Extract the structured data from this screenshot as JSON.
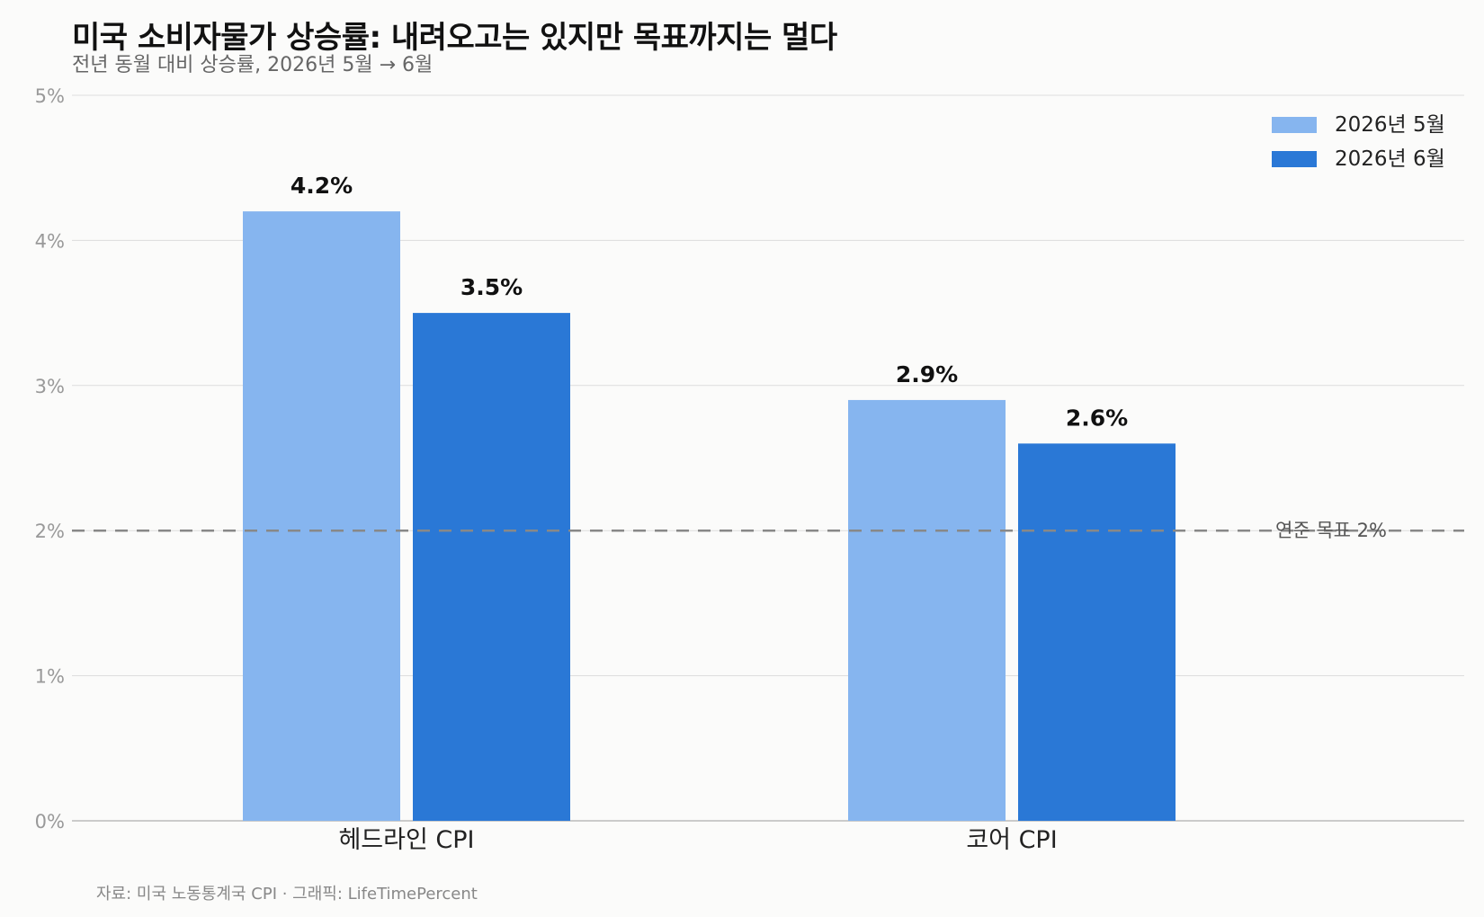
{
  "title": "미국 소비자물가 상승률: 내려오고는 있지만 목표까지는 멀다",
  "subtitle": "전년 동월 대비 상승률, 2026년 5월 → 6월",
  "source": "자료: 미국 노동통계국 CPI · 그래픽: LifeTimePercent",
  "chart_data": {
    "type": "bar",
    "categories": [
      "헤드라인 CPI",
      "코어 CPI"
    ],
    "series": [
      {
        "name": "2026년 5월",
        "values": [
          4.2,
          2.9
        ],
        "labels": [
          "4.2%",
          "2.9%"
        ],
        "color": "#86b5ef"
      },
      {
        "name": "2026년 6월",
        "values": [
          3.5,
          2.6
        ],
        "labels": [
          "3.5%",
          "2.6%"
        ],
        "color": "#2a78d6"
      }
    ],
    "ylim": [
      0,
      5
    ],
    "yticks": [
      0,
      1,
      2,
      3,
      4,
      5
    ],
    "ytick_labels": [
      "0%",
      "1%",
      "2%",
      "3%",
      "4%",
      "5%"
    ],
    "grid": true,
    "legend_position": "top-right",
    "reference_line": {
      "value": 2,
      "label": "연준 목표 2%",
      "style": "dashed",
      "color": "#888888"
    }
  }
}
